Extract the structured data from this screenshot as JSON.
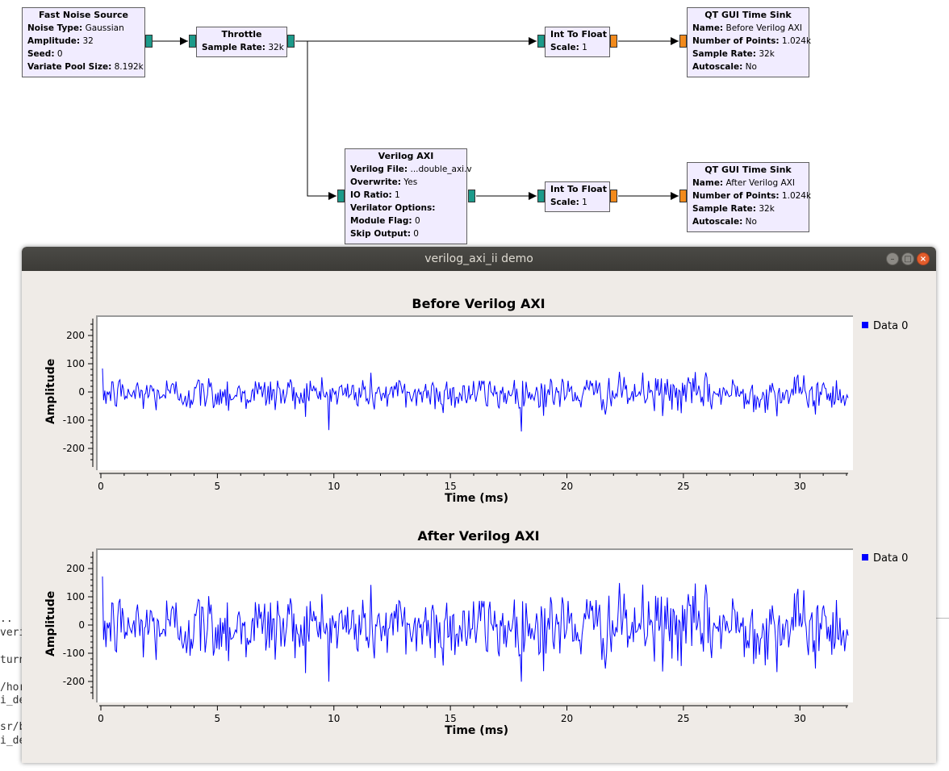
{
  "flowgraph": {
    "blocks": {
      "noise": {
        "title": "Fast Noise Source",
        "params": [
          {
            "k": "Noise Type:",
            "v": "Gaussian"
          },
          {
            "k": "Amplitude:",
            "v": "32"
          },
          {
            "k": "Seed:",
            "v": "0"
          },
          {
            "k": "Variate Pool Size:",
            "v": "8.192k"
          }
        ]
      },
      "throttle": {
        "title": "Throttle",
        "params": [
          {
            "k": "Sample Rate:",
            "v": "32k"
          }
        ]
      },
      "i2f_top": {
        "title": "Int To Float",
        "params": [
          {
            "k": "Scale:",
            "v": "1"
          }
        ]
      },
      "sink_top": {
        "title": "QT GUI Time Sink",
        "params": [
          {
            "k": "Name:",
            "v": "Before Verilog AXI"
          },
          {
            "k": "Number of Points:",
            "v": "1.024k"
          },
          {
            "k": "Sample Rate:",
            "v": "32k"
          },
          {
            "k": "Autoscale:",
            "v": "No"
          }
        ]
      },
      "verilog": {
        "title": "Verilog AXI",
        "params": [
          {
            "k": "Verilog File:",
            "v": "...double_axi.v"
          },
          {
            "k": "Overwrite:",
            "v": "Yes"
          },
          {
            "k": "IO Ratio:",
            "v": "1"
          },
          {
            "k": "Verilator Options:",
            "v": ""
          },
          {
            "k": "Module Flag:",
            "v": "0"
          },
          {
            "k": "Skip Output:",
            "v": "0"
          }
        ]
      },
      "i2f_bot": {
        "title": "Int To Float",
        "params": [
          {
            "k": "Scale:",
            "v": "1"
          }
        ]
      },
      "sink_bot": {
        "title": "QT GUI Time Sink",
        "params": [
          {
            "k": "Name:",
            "v": "After Verilog AXI"
          },
          {
            "k": "Number of Points:",
            "v": "1.024k"
          },
          {
            "k": "Sample Rate:",
            "v": "32k"
          },
          {
            "k": "Autoscale:",
            "v": "No"
          }
        ]
      }
    },
    "colors": {
      "complex_port": "#1c9a8a",
      "float_port": "#f28a1c",
      "block_bg": "#f1ecff"
    }
  },
  "terminal": {
    "lines": [
      "..",
      "veril",
      "turn",
      "/hor",
      "i_de",
      "sr/b",
      "i_de"
    ]
  },
  "window": {
    "title": "verilog_axi_ii demo"
  },
  "chart_data": [
    {
      "type": "line",
      "title": "Before Verilog AXI",
      "xlabel": "Time (ms)",
      "ylabel": "Amplitude",
      "xlim": [
        0,
        32
      ],
      "ylim": [
        -250,
        250
      ],
      "xticks": [
        "0",
        "5",
        "10",
        "15",
        "20",
        "25",
        "30"
      ],
      "yticks": [
        "200",
        "100",
        "0",
        "-100",
        "-200"
      ],
      "legend": "top-right",
      "grid": false,
      "series": [
        {
          "name": "Data 0",
          "color": "#0000ff",
          "noise_std": 32,
          "points": 1024,
          "sample_rate_khz": 32
        }
      ]
    },
    {
      "type": "line",
      "title": "After Verilog AXI",
      "xlabel": "Time (ms)",
      "ylabel": "Amplitude",
      "xlim": [
        0,
        32
      ],
      "ylim": [
        -250,
        250
      ],
      "xticks": [
        "0",
        "5",
        "10",
        "15",
        "20",
        "25",
        "30"
      ],
      "yticks": [
        "200",
        "100",
        "0",
        "-100",
        "-200"
      ],
      "legend": "top-right",
      "grid": false,
      "series": [
        {
          "name": "Data 0",
          "color": "#0000ff",
          "noise_std": 64,
          "points": 1024,
          "sample_rate_khz": 32
        }
      ]
    }
  ]
}
